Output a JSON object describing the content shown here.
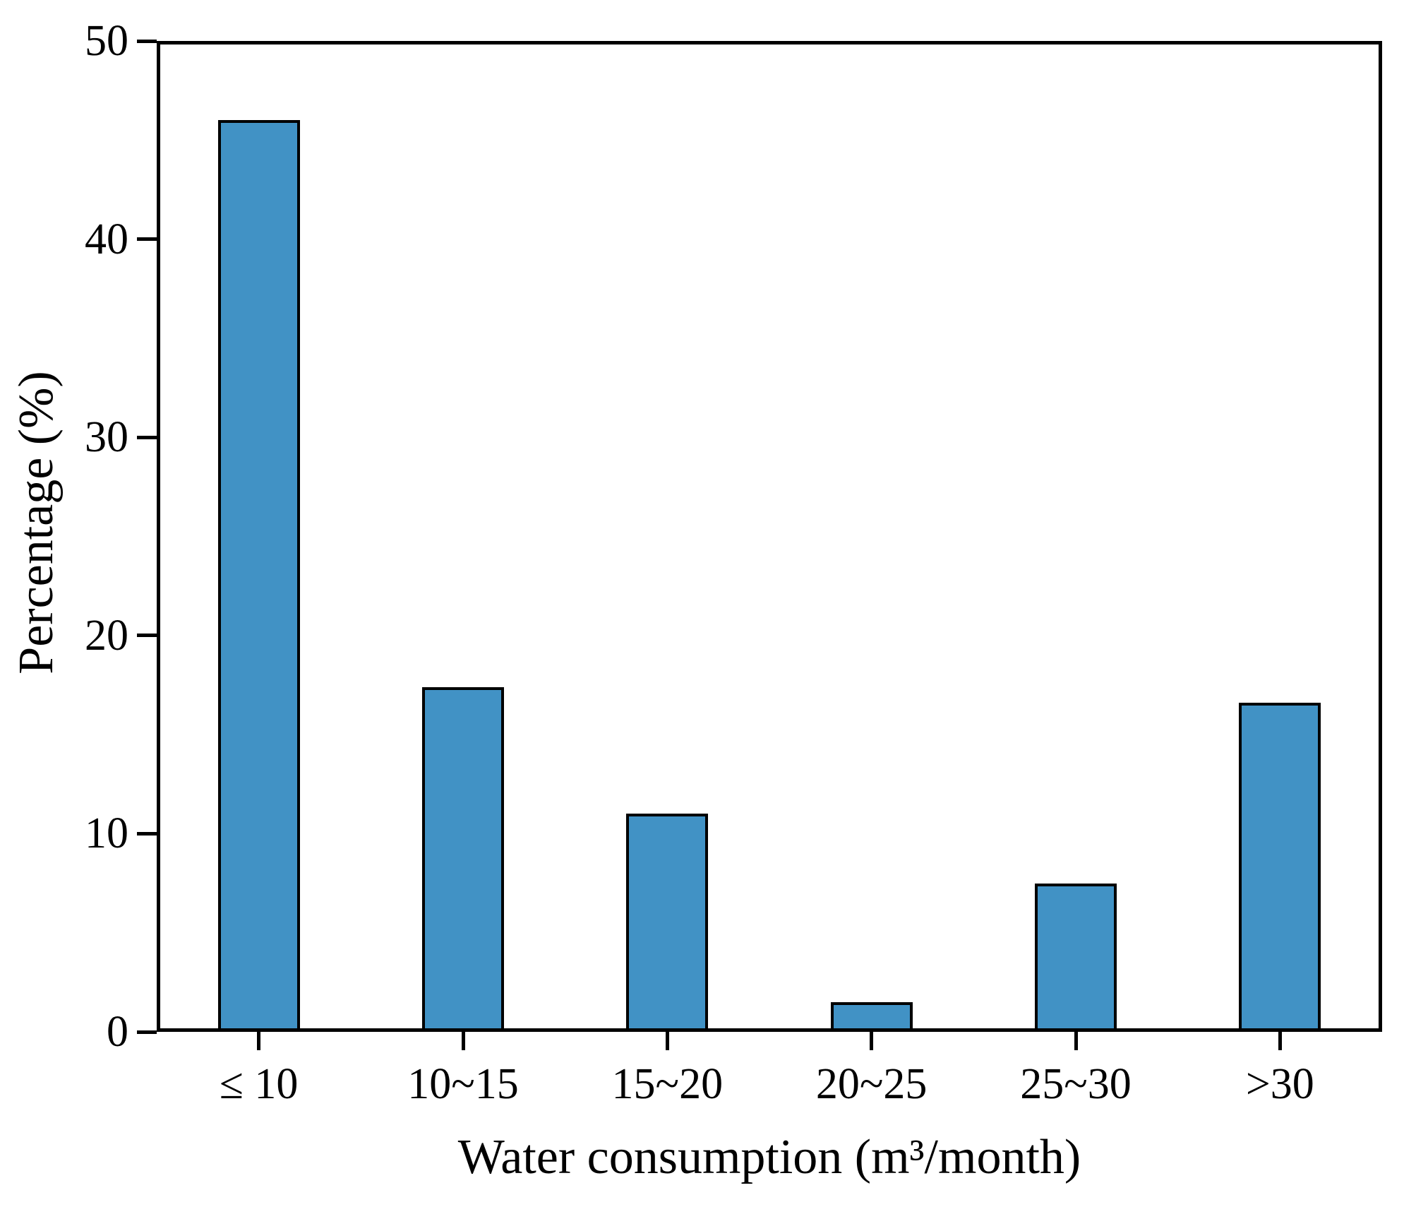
{
  "chart_data": {
    "type": "bar",
    "title": "",
    "xlabel": "Water consumption (m³/month)",
    "ylabel": "Percentage (%)",
    "categories": [
      "≤ 10",
      "10~15",
      "15~20",
      "20~25",
      "25~30",
      ">30"
    ],
    "values": [
      46.0,
      17.4,
      11.0,
      1.5,
      7.5,
      16.6
    ],
    "ylim": [
      0,
      50
    ],
    "yticks": [
      0,
      10,
      20,
      30,
      40,
      50
    ],
    "bar_color": "#4192C5",
    "bar_edge_color": "#000000",
    "axis_color": "#000000",
    "grid": false,
    "legend_position": "none"
  }
}
